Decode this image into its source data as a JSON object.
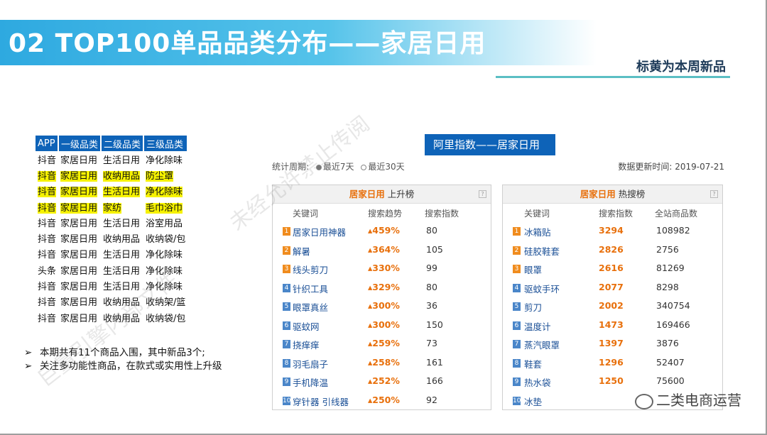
{
  "title": "02  TOP100单品品类分布——家居日用",
  "subtitle": "标黄为本周新品",
  "left_table": {
    "headers": [
      "APP",
      "一级品类",
      "二级品类",
      "三级品类"
    ],
    "rows": [
      {
        "cells": [
          "抖音",
          "家居日用",
          "生活日用",
          "净化除味"
        ],
        "highlight": false
      },
      {
        "cells": [
          "抖音",
          "家居日用",
          "收纳用品",
          "防尘罩"
        ],
        "highlight": true
      },
      {
        "cells": [
          "抖音",
          "家居日用",
          "生活日用",
          "净化除味"
        ],
        "highlight": true
      },
      {
        "cells": [
          "抖音",
          "家居日用",
          "家纺",
          "毛巾浴巾"
        ],
        "highlight": true
      },
      {
        "cells": [
          "抖音",
          "家居日用",
          "生活日用",
          "浴室用品"
        ],
        "highlight": false
      },
      {
        "cells": [
          "抖音",
          "家居日用",
          "收纳用品",
          "收纳袋/包"
        ],
        "highlight": false
      },
      {
        "cells": [
          "抖音",
          "家居日用",
          "生活日用",
          "净化除味"
        ],
        "highlight": false
      },
      {
        "cells": [
          "头条",
          "家居日用",
          "生活日用",
          "净化除味"
        ],
        "highlight": false
      },
      {
        "cells": [
          "抖音",
          "家居日用",
          "生活日用",
          "净化除味"
        ],
        "highlight": false
      },
      {
        "cells": [
          "抖音",
          "家居日用",
          "收纳用品",
          "收纳架/篮"
        ],
        "highlight": false
      },
      {
        "cells": [
          "抖音",
          "家居日用",
          "收纳用品",
          "收纳袋/包"
        ],
        "highlight": false
      }
    ]
  },
  "notes": [
    "本期共有11个商品入围，其中新品3个;",
    "关注多功能性商品，在款式或实用性上升级"
  ],
  "note_bullet": "➢",
  "ali": {
    "header": "阿里指数——居家日用",
    "period_label": "统计周期:",
    "period_options": [
      "最近7天",
      "最近30天"
    ],
    "period_selected": "最近7天",
    "update_text": "数据更新时间: 2019-07-21"
  },
  "rising": {
    "category": "居家日用",
    "kind": "上升榜",
    "help": "?",
    "columns": [
      "关键词",
      "搜索趋势",
      "搜索指数"
    ],
    "rows": [
      {
        "rank": "1",
        "keyword": "居家日用神器",
        "trend": "459%",
        "index": "80"
      },
      {
        "rank": "2",
        "keyword": "解暑",
        "trend": "364%",
        "index": "105"
      },
      {
        "rank": "3",
        "keyword": "线头剪刀",
        "trend": "330%",
        "index": "99"
      },
      {
        "rank": "4",
        "keyword": "针织工具",
        "trend": "329%",
        "index": "80"
      },
      {
        "rank": "5",
        "keyword": "眼罩真丝",
        "trend": "300%",
        "index": "36"
      },
      {
        "rank": "6",
        "keyword": "驱蚊网",
        "trend": "300%",
        "index": "150"
      },
      {
        "rank": "7",
        "keyword": "挠痒痒",
        "trend": "259%",
        "index": "73"
      },
      {
        "rank": "8",
        "keyword": "羽毛扇子",
        "trend": "258%",
        "index": "161"
      },
      {
        "rank": "9",
        "keyword": "手机降温",
        "trend": "252%",
        "index": "166"
      },
      {
        "rank": "10",
        "keyword": "穿针器 引线器",
        "trend": "250%",
        "index": "92"
      }
    ]
  },
  "hot": {
    "category": "居家日用",
    "kind": "热搜榜",
    "help": "?",
    "columns": [
      "关键词",
      "搜索指数",
      "全站商品数"
    ],
    "rows": [
      {
        "rank": "1",
        "keyword": "冰箱贴",
        "index": "3294",
        "total": "108982"
      },
      {
        "rank": "2",
        "keyword": "硅胶鞋套",
        "index": "2826",
        "total": "2756"
      },
      {
        "rank": "3",
        "keyword": "眼罩",
        "index": "2616",
        "total": "81269"
      },
      {
        "rank": "4",
        "keyword": "驱蚊手环",
        "index": "2077",
        "total": "8298"
      },
      {
        "rank": "5",
        "keyword": "剪刀",
        "index": "2002",
        "total": "340754"
      },
      {
        "rank": "6",
        "keyword": "温度计",
        "index": "1473",
        "total": "169466"
      },
      {
        "rank": "7",
        "keyword": "蒸汽眼罩",
        "index": "1397",
        "total": "3876"
      },
      {
        "rank": "8",
        "keyword": "鞋套",
        "index": "1296",
        "total": "52407"
      },
      {
        "rank": "9",
        "keyword": "热水袋",
        "index": "1250",
        "total": "75600"
      },
      {
        "rank": "10",
        "keyword": "冰垫",
        "index": "",
        "total": ""
      }
    ]
  },
  "logo": "二类电商运营",
  "watermark": "未经允许禁止传阅",
  "watermark2": "巨量引擎内部文件",
  "colors": {
    "accent": "#0e63b8",
    "highlight": "#f6f200",
    "orange": "#e8700c",
    "title_band": "#2ea9e0"
  },
  "icons": {
    "help": "help-icon",
    "logo": "wechat-icon",
    "trend_up": "arrow-up-icon"
  }
}
